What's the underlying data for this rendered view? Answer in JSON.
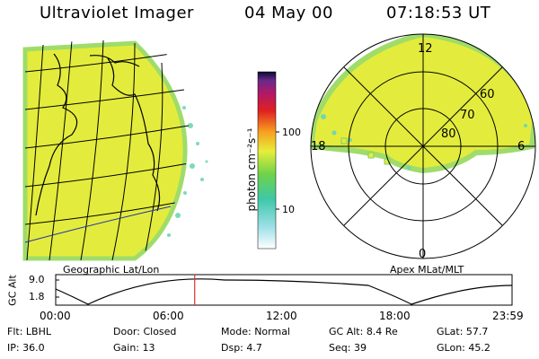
{
  "header": {
    "instrument": "Ultraviolet Imager",
    "date": "04 May 00",
    "time": "07:18:53 UT"
  },
  "colorbar": {
    "unit_label": "photon cm⁻²s⁻¹",
    "ticks": [
      "100",
      "10"
    ],
    "scale": "log"
  },
  "left_panel": {
    "caption": "Geographic Lat/Lon"
  },
  "right_panel": {
    "caption": "Apex MLat/MLT",
    "mlt_labels": [
      "12",
      "18",
      "6",
      "0"
    ],
    "mlat_labels": [
      "60",
      "70",
      "80"
    ]
  },
  "altitude_plot": {
    "ylabel": "GC Alt",
    "ytick_labels": [
      "9.0",
      "1.8"
    ],
    "xtick_labels": [
      "00:00",
      "06:00",
      "12:00",
      "18:00",
      "23:59"
    ],
    "marker_time_hours": 7.31
  },
  "footer": {
    "row1": [
      {
        "key": "Flt:",
        "value": "LBHL"
      },
      {
        "key": "Door:",
        "value": "Closed"
      },
      {
        "key": "Mode:",
        "value": "Normal"
      },
      {
        "key": "GC Alt:",
        "value": "8.4 Re"
      },
      {
        "key": "GLat:",
        "value": "57.7"
      }
    ],
    "row2": [
      {
        "key": "IP:",
        "value": "36.0"
      },
      {
        "key": "Gain:",
        "value": "13"
      },
      {
        "key": "Dsp:",
        "value": "4.7"
      },
      {
        "key": "Seq:",
        "value": "39"
      },
      {
        "key": "GLon:",
        "value": "45.2"
      }
    ]
  },
  "colors": {
    "disk_fill": "#e6ee3a",
    "disk_edge": "#9fdc6a",
    "speckle": "#55d2c8",
    "marker": "#e03030",
    "curve": "#000000"
  }
}
